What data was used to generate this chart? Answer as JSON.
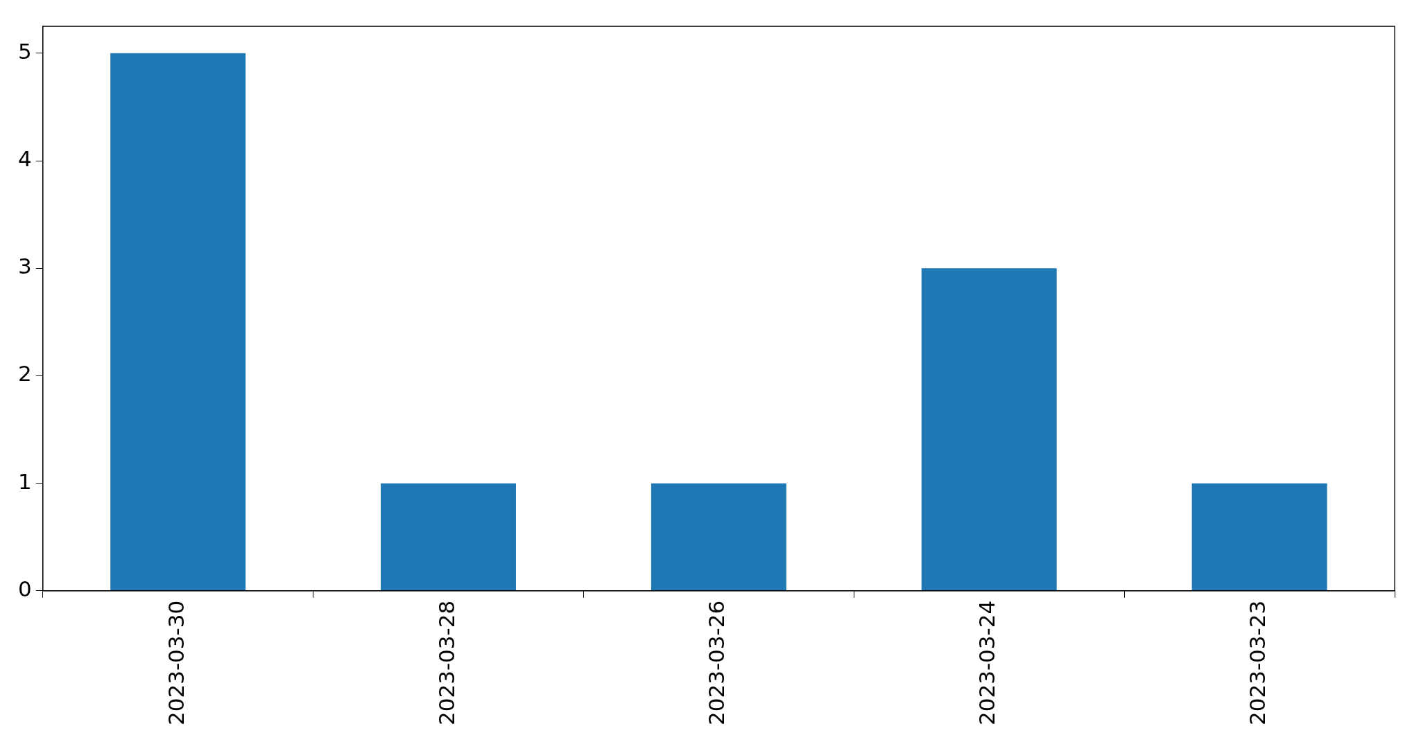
{
  "chart_data": {
    "type": "bar",
    "categories": [
      "2023-03-30",
      "2023-03-28",
      "2023-03-26",
      "2023-03-24",
      "2023-03-23"
    ],
    "values": [
      5,
      1,
      1,
      3,
      1
    ],
    "color": "#1f77b4",
    "ylim": [
      0,
      5.25
    ],
    "yticks": [
      0,
      1,
      2,
      3,
      4,
      5
    ],
    "grid": false,
    "legend": false
  }
}
